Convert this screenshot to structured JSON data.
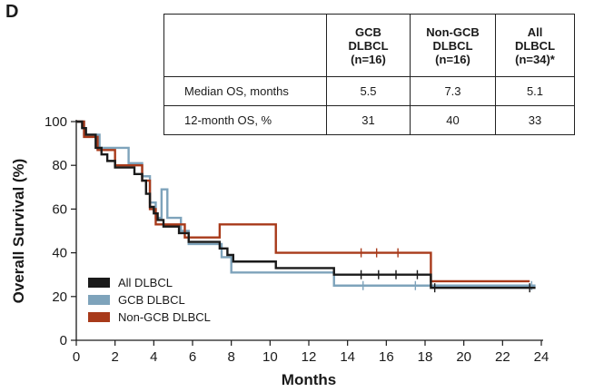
{
  "panel_label": "D",
  "table": {
    "columns": [
      "",
      "GCB\nDLBCL\n(n=16)",
      "Non-GCB\nDLBCL\n(n=16)",
      "All\nDLBCL\n(n=34)*"
    ],
    "rows": [
      {
        "label": "Median OS, months",
        "values": [
          "5.5",
          "7.3",
          "5.1"
        ]
      },
      {
        "label": "12-month OS, %",
        "values": [
          "31",
          "40",
          "33"
        ]
      }
    ]
  },
  "chart_data": {
    "type": "line",
    "step": true,
    "xlabel": "Months",
    "ylabel": "Overall Survival (%)",
    "xlim": [
      0,
      24
    ],
    "ylim": [
      0,
      100
    ],
    "xticks": [
      0,
      2,
      4,
      6,
      8,
      10,
      12,
      14,
      16,
      18,
      20,
      22,
      24
    ],
    "yticks": [
      0,
      20,
      40,
      60,
      80,
      100
    ],
    "grid": false,
    "legend_position": "bottom-left",
    "series": [
      {
        "name": "All DLBCL",
        "color": "#1a1a1a",
        "points": [
          [
            0,
            100
          ],
          [
            0.3,
            97
          ],
          [
            0.5,
            94
          ],
          [
            1.0,
            88
          ],
          [
            1.3,
            85
          ],
          [
            1.6,
            82
          ],
          [
            2.0,
            79
          ],
          [
            3.0,
            76
          ],
          [
            3.4,
            73
          ],
          [
            3.6,
            67
          ],
          [
            3.8,
            61
          ],
          [
            4.0,
            58
          ],
          [
            4.2,
            55
          ],
          [
            4.5,
            52
          ],
          [
            5.3,
            49
          ],
          [
            5.8,
            45
          ],
          [
            7.4,
            42
          ],
          [
            7.8,
            39
          ],
          [
            8.1,
            36
          ],
          [
            10.3,
            33
          ],
          [
            13.3,
            30
          ],
          [
            18.3,
            24
          ],
          [
            23.7,
            24
          ]
        ],
        "censored": [
          [
            14.7,
            30
          ],
          [
            15.6,
            30
          ],
          [
            16.5,
            30
          ],
          [
            17.6,
            30
          ],
          [
            18.5,
            24
          ],
          [
            23.4,
            24
          ]
        ]
      },
      {
        "name": "GCB DLBCL",
        "color": "#7ea3bb",
        "points": [
          [
            0,
            100
          ],
          [
            0.4,
            94
          ],
          [
            1.2,
            88
          ],
          [
            2.7,
            81
          ],
          [
            3.4,
            75
          ],
          [
            3.8,
            63
          ],
          [
            4.1,
            56
          ],
          [
            4.4,
            69
          ],
          [
            4.7,
            56
          ],
          [
            5.4,
            50
          ],
          [
            5.8,
            44
          ],
          [
            7.5,
            38
          ],
          [
            8.0,
            31
          ],
          [
            13.3,
            25
          ],
          [
            23.7,
            25
          ]
        ],
        "censored": [
          [
            14.8,
            25
          ],
          [
            17.5,
            25
          ],
          [
            23.5,
            25
          ]
        ]
      },
      {
        "name": "Non-GCB DLBCL",
        "color": "#a83a1a",
        "points": [
          [
            0,
            100
          ],
          [
            0.4,
            93
          ],
          [
            1.1,
            87
          ],
          [
            2.0,
            80
          ],
          [
            3.4,
            73
          ],
          [
            3.8,
            60
          ],
          [
            4.1,
            53
          ],
          [
            5.6,
            47
          ],
          [
            7.4,
            53
          ],
          [
            10.3,
            40
          ],
          [
            18.3,
            27
          ],
          [
            23.4,
            27
          ]
        ],
        "censored": [
          [
            14.7,
            40
          ],
          [
            15.5,
            40
          ],
          [
            16.6,
            40
          ]
        ]
      }
    ]
  }
}
